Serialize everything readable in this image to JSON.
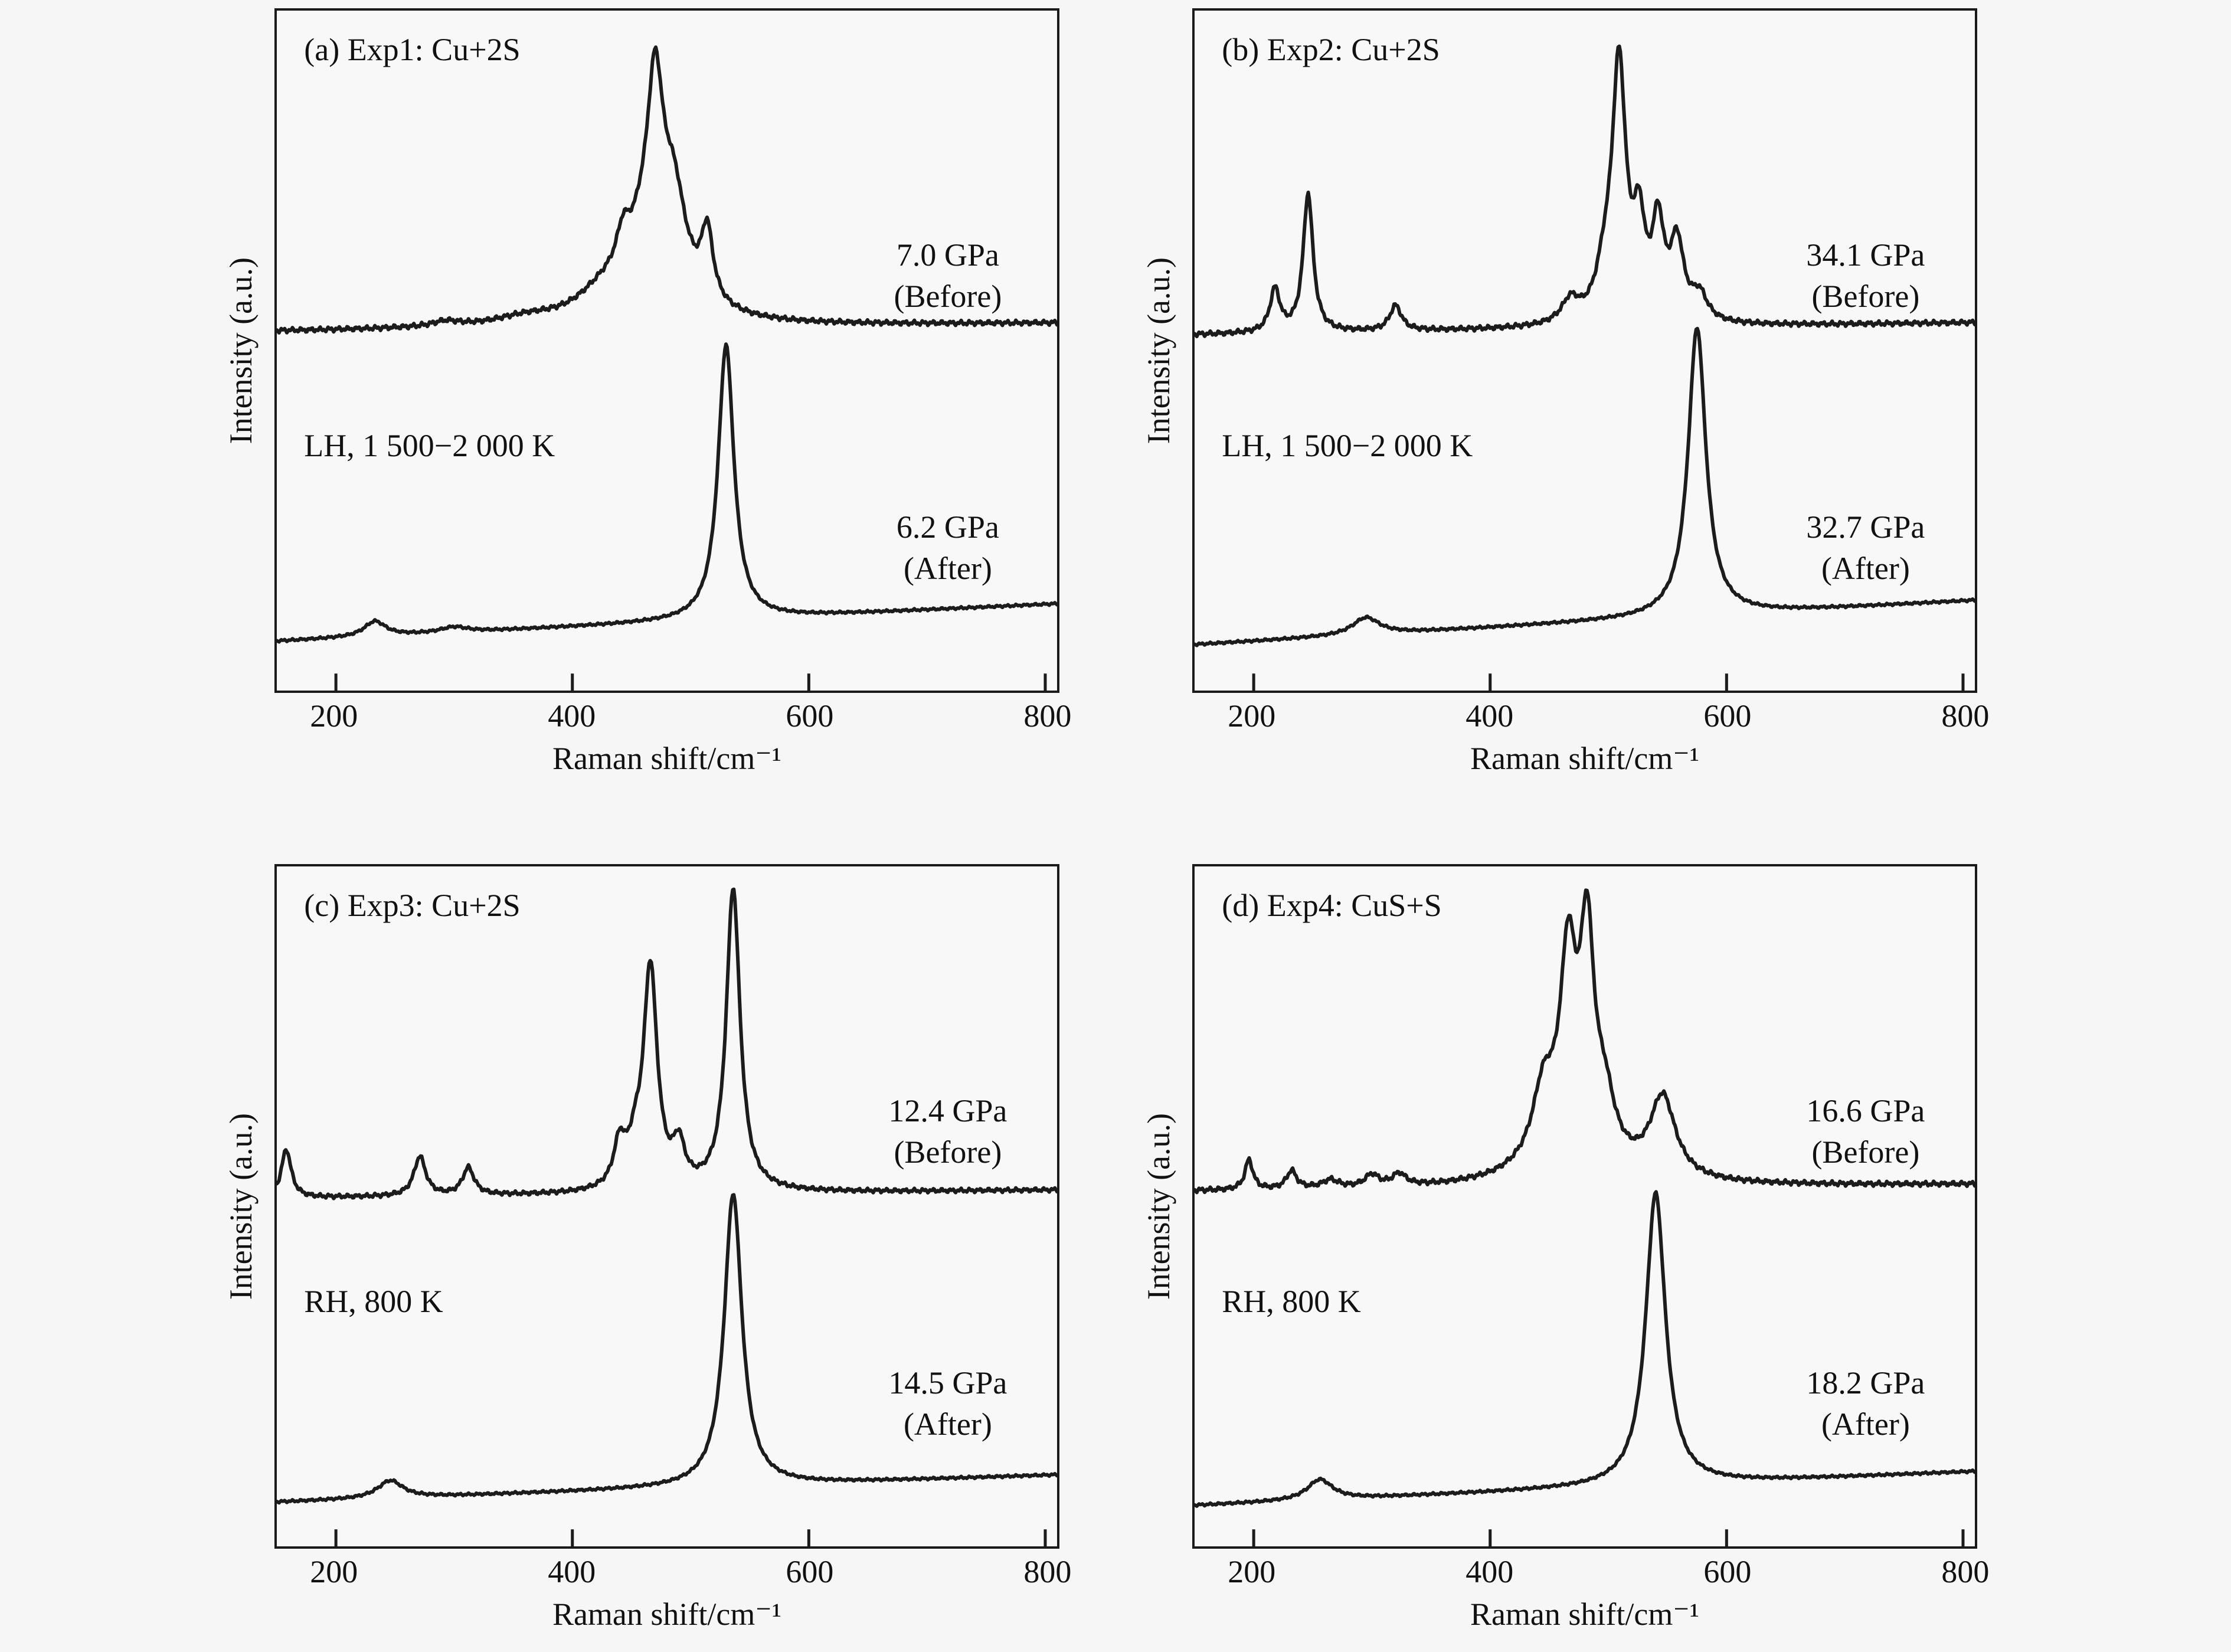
{
  "figure": {
    "background": "#f6f6f6",
    "panel_background": "#f8f8f8",
    "line_color": "#1c1c1c",
    "text_color": "#111111",
    "peaks_format": "each peak = [center_cm-1, relative_height, half_width_cm-1]"
  },
  "chart_data": [
    {
      "type": "line",
      "panel_id": "a",
      "title": "(a) Exp1: Cu+2S",
      "condition_label": "LH, 1 500−2 000 K",
      "xlabel": "Raman shift/cm⁻¹",
      "ylabel": "Intensity (a.u.)",
      "xlim": [
        150,
        810
      ],
      "xticks": [
        200,
        400,
        600,
        800
      ],
      "grid": false,
      "legend": "none",
      "series": [
        {
          "name": "before",
          "pressure": "7.0 GPa",
          "state": "(Before)",
          "baseline": 0.466,
          "tilt": -0.012,
          "amp": 0.41,
          "noise": 0.004,
          "peaks": [
            [
              293,
              0.03,
              14
            ],
            [
              360,
              0.04,
              30
            ],
            [
              428,
              0.16,
              30
            ],
            [
              443,
              0.22,
              7
            ],
            [
              458,
              0.18,
              12
            ],
            [
              470,
              1.0,
              8
            ],
            [
              486,
              0.45,
              12
            ],
            [
              475,
              0.3,
              28
            ],
            [
              514,
              0.4,
              6
            ]
          ]
        },
        {
          "name": "after",
          "pressure": "6.2 GPa",
          "state": "(After)",
          "baseline": 0.9,
          "tilt": -0.055,
          "amp": 0.405,
          "noise": 0.002,
          "peaks": [
            [
              233,
              0.055,
              11
            ],
            [
              300,
              0.02,
              14
            ],
            [
              530,
              1.0,
              8
            ]
          ]
        }
      ]
    },
    {
      "type": "line",
      "panel_id": "b",
      "title": "(b) Exp2: Cu+2S",
      "condition_label": "LH, 1 500−2 000 K",
      "xlabel": "Raman shift/cm⁻¹",
      "ylabel": "Intensity (a.u.)",
      "xlim": [
        150,
        810
      ],
      "xticks": [
        200,
        400,
        600,
        800
      ],
      "grid": false,
      "legend": "none",
      "series": [
        {
          "name": "before",
          "pressure": "34.1 GPa",
          "state": "(Before)",
          "baseline": 0.468,
          "tilt": -0.018,
          "amp": 0.415,
          "noise": 0.004,
          "peaks": [
            [
              218,
              0.17,
              5
            ],
            [
              246,
              0.55,
              5
            ],
            [
              320,
              0.1,
              6
            ],
            [
              468,
              0.09,
              9
            ],
            [
              497,
              0.16,
              9
            ],
            [
              509,
              1.0,
              7
            ],
            [
              526,
              0.34,
              6
            ],
            [
              542,
              0.36,
              6
            ],
            [
              558,
              0.3,
              7
            ],
            [
              577,
              0.1,
              8
            ]
          ]
        },
        {
          "name": "after",
          "pressure": "32.7 GPa",
          "state": "(After)",
          "baseline": 0.9,
          "tilt": -0.065,
          "amp": 0.425,
          "noise": 0.002,
          "peaks": [
            [
              295,
              0.06,
              14
            ],
            [
              575,
              1.0,
              9
            ]
          ]
        }
      ]
    },
    {
      "type": "line",
      "panel_id": "c",
      "title": "(c) Exp3: Cu+2S",
      "condition_label": "RH, 800 K",
      "xlabel": "Raman shift/cm⁻¹",
      "ylabel": "Intensity (a.u.)",
      "xlim": [
        150,
        810
      ],
      "xticks": [
        200,
        400,
        600,
        800
      ],
      "grid": false,
      "legend": "none",
      "series": [
        {
          "name": "before",
          "pressure": "12.4 GPa",
          "state": "(Before)",
          "baseline": 0.482,
          "tilt": -0.012,
          "amp": 0.45,
          "noise": 0.0035,
          "peaks": [
            [
              158,
              0.16,
              5
            ],
            [
              271,
              0.13,
              6
            ],
            [
              312,
              0.09,
              6
            ],
            [
              440,
              0.14,
              6
            ],
            [
              453,
              0.1,
              7
            ],
            [
              466,
              0.73,
              7
            ],
            [
              490,
              0.13,
              6
            ],
            [
              536,
              1.0,
              7
            ]
          ]
        },
        {
          "name": "after",
          "pressure": "14.5 GPa",
          "state": "(After)",
          "baseline": 0.915,
          "tilt": -0.04,
          "amp": 0.43,
          "noise": 0.002,
          "peaks": [
            [
              246,
              0.06,
              13
            ],
            [
              536,
              1.0,
              9
            ]
          ]
        }
      ]
    },
    {
      "type": "line",
      "panel_id": "d",
      "title": "(d) Exp4: CuS+S",
      "condition_label": "RH, 800 K",
      "xlabel": "Raman shift/cm⁻¹",
      "ylabel": "Intensity (a.u.)",
      "xlim": [
        150,
        810
      ],
      "xticks": [
        200,
        400,
        600,
        800
      ],
      "grid": false,
      "legend": "none",
      "series": [
        {
          "name": "before",
          "pressure": "16.6 GPa",
          "state": "(Before)",
          "baseline": 0.473,
          "tilt": -0.01,
          "amp": 0.44,
          "noise": 0.004,
          "peaks": [
            [
              196,
              0.15,
              4
            ],
            [
              232,
              0.09,
              5
            ],
            [
              265,
              0.04,
              8
            ],
            [
              300,
              0.06,
              7
            ],
            [
              323,
              0.06,
              7
            ],
            [
              445,
              0.32,
              11
            ],
            [
              466,
              0.88,
              8
            ],
            [
              482,
              1.0,
              7
            ],
            [
              497,
              0.25,
              10
            ],
            [
              470,
              0.22,
              35
            ],
            [
              546,
              0.4,
              13
            ]
          ]
        },
        {
          "name": "after",
          "pressure": "18.2 GPa",
          "state": "(After)",
          "baseline": 0.915,
          "tilt": -0.05,
          "amp": 0.43,
          "noise": 0.002,
          "peaks": [
            [
              256,
              0.07,
              13
            ],
            [
              540,
              1.0,
              10
            ]
          ]
        }
      ]
    }
  ]
}
